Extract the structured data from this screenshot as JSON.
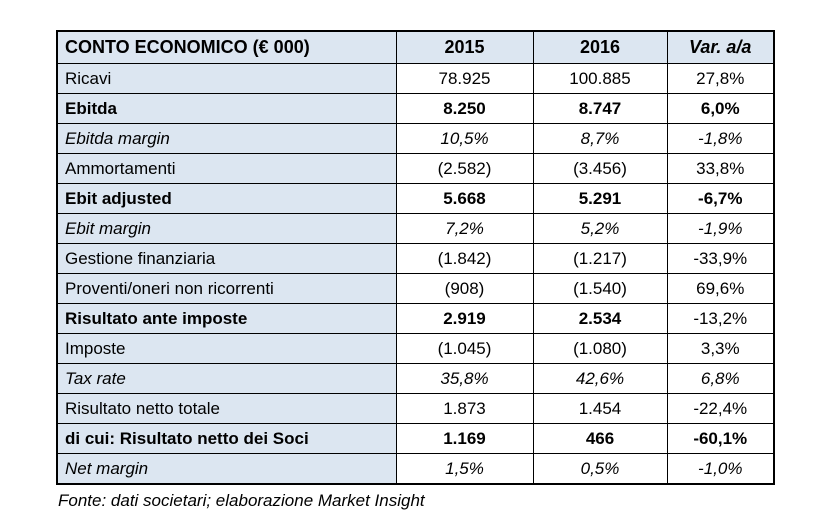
{
  "table": {
    "header": {
      "label": "CONTO ECONOMICO (€ 000)",
      "col_2015": "2015",
      "col_2016": "2016",
      "col_var": "Var. a/a"
    },
    "rows": [
      {
        "label": "Ricavi",
        "v2015": "78.925",
        "v2016": "100.885",
        "var": "27,8%",
        "style": "normal",
        "var_style": "normal"
      },
      {
        "label": "Ebitda",
        "v2015": "8.250",
        "v2016": "8.747",
        "var": "6,0%",
        "style": "bold",
        "var_style": "bold"
      },
      {
        "label": "Ebitda margin",
        "v2015": "10,5%",
        "v2016": "8,7%",
        "var": "-1,8%",
        "style": "italic",
        "var_style": "italic"
      },
      {
        "label": "Ammortamenti",
        "v2015": "(2.582)",
        "v2016": "(3.456)",
        "var": "33,8%",
        "style": "normal",
        "var_style": "normal"
      },
      {
        "label": "Ebit adjusted",
        "v2015": "5.668",
        "v2016": "5.291",
        "var": "-6,7%",
        "style": "bold",
        "var_style": "bold"
      },
      {
        "label": "Ebit margin",
        "v2015": "7,2%",
        "v2016": "5,2%",
        "var": "-1,9%",
        "style": "italic",
        "var_style": "italic"
      },
      {
        "label": "Gestione finanziaria",
        "v2015": "(1.842)",
        "v2016": "(1.217)",
        "var": "-33,9%",
        "style": "normal",
        "var_style": "normal"
      },
      {
        "label": "Proventi/oneri non ricorrenti",
        "v2015": "(908)",
        "v2016": "(1.540)",
        "var": "69,6%",
        "style": "normal",
        "var_style": "normal"
      },
      {
        "label": "Risultato ante imposte",
        "v2015": "2.919",
        "v2016": "2.534",
        "var": "-13,2%",
        "style": "bold",
        "var_style": "normal"
      },
      {
        "label": "Imposte",
        "v2015": "(1.045)",
        "v2016": "(1.080)",
        "var": "3,3%",
        "style": "normal",
        "var_style": "normal"
      },
      {
        "label": "Tax rate",
        "v2015": "35,8%",
        "v2016": "42,6%",
        "var": "6,8%",
        "style": "italic",
        "var_style": "italic"
      },
      {
        "label": "Risultato netto totale",
        "v2015": "1.873",
        "v2016": "1.454",
        "var": "-22,4%",
        "style": "normal",
        "var_style": "normal"
      },
      {
        "label": "di cui: Risultato netto dei Soci",
        "v2015": "1.169",
        "v2016": "466",
        "var": "-60,1%",
        "style": "bold",
        "var_style": "bold"
      },
      {
        "label": "Net margin",
        "v2015": "1,5%",
        "v2016": "0,5%",
        "var": "-1,0%",
        "style": "italic",
        "var_style": "italic"
      }
    ],
    "footer": "Fonte: dati societari; elaborazione Market Insight"
  },
  "colors": {
    "header_bg": "#dce6f1",
    "label_column_bg": "#dce6f1",
    "value_cell_bg": "#ffffff",
    "border": "#000000",
    "text": "#000000"
  },
  "chart_data": {
    "type": "table",
    "title": "CONTO ECONOMICO (€ 000)",
    "columns": [
      "CONTO ECONOMICO (€ 000)",
      "2015",
      "2016",
      "Var. a/a"
    ],
    "rows": [
      [
        "Ricavi",
        "78.925",
        "100.885",
        "27,8%"
      ],
      [
        "Ebitda",
        "8.250",
        "8.747",
        "6,0%"
      ],
      [
        "Ebitda margin",
        "10,5%",
        "8,7%",
        "-1,8%"
      ],
      [
        "Ammortamenti",
        "(2.582)",
        "(3.456)",
        "33,8%"
      ],
      [
        "Ebit adjusted",
        "5.668",
        "5.291",
        "-6,7%"
      ],
      [
        "Ebit margin",
        "7,2%",
        "5,2%",
        "-1,9%"
      ],
      [
        "Gestione finanziaria",
        "(1.842)",
        "(1.217)",
        "-33,9%"
      ],
      [
        "Proventi/oneri non ricorrenti",
        "(908)",
        "(1.540)",
        "69,6%"
      ],
      [
        "Risultato ante imposte",
        "2.919",
        "2.534",
        "-13,2%"
      ],
      [
        "Imposte",
        "(1.045)",
        "(1.080)",
        "3,3%"
      ],
      [
        "Tax rate",
        "35,8%",
        "42,6%",
        "6,8%"
      ],
      [
        "Risultato netto totale",
        "1.873",
        "1.454",
        "-22,4%"
      ],
      [
        "di cui: Risultato netto dei Soci",
        "1.169",
        "466",
        "-60,1%"
      ],
      [
        "Net margin",
        "1,5%",
        "0,5%",
        "-1,0%"
      ]
    ],
    "annotations": [
      "Fonte: dati societari; elaborazione Market Insight"
    ]
  }
}
